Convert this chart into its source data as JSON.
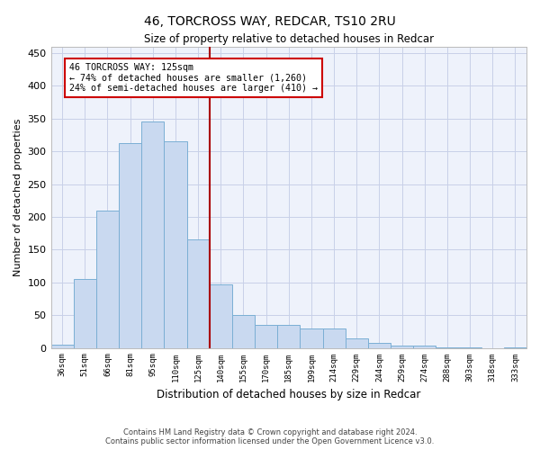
{
  "title": "46, TORCROSS WAY, REDCAR, TS10 2RU",
  "subtitle": "Size of property relative to detached houses in Redcar",
  "xlabel": "Distribution of detached houses by size in Redcar",
  "ylabel": "Number of detached properties",
  "categories": [
    "36sqm",
    "51sqm",
    "66sqm",
    "81sqm",
    "95sqm",
    "110sqm",
    "125sqm",
    "140sqm",
    "155sqm",
    "170sqm",
    "185sqm",
    "199sqm",
    "214sqm",
    "229sqm",
    "244sqm",
    "259sqm",
    "274sqm",
    "288sqm",
    "303sqm",
    "318sqm",
    "333sqm"
  ],
  "values": [
    5,
    105,
    210,
    313,
    345,
    316,
    165,
    97,
    50,
    35,
    35,
    29,
    29,
    15,
    7,
    4,
    4,
    1,
    1,
    0,
    1
  ],
  "highlight_index": 6,
  "vline_x": 6.5,
  "bar_color": "#c9d9f0",
  "bar_edge_color": "#7bafd4",
  "vline_color": "#aa0000",
  "annotation_line1": "46 TORCROSS WAY: 125sqm",
  "annotation_line2": "← 74% of detached houses are smaller (1,260)",
  "annotation_line3": "24% of semi-detached houses are larger (410) →",
  "annotation_box_color": "#ffffff",
  "annotation_box_edge": "#cc0000",
  "ylim": [
    0,
    460
  ],
  "yticks": [
    0,
    50,
    100,
    150,
    200,
    250,
    300,
    350,
    400,
    450
  ],
  "footer1": "Contains HM Land Registry data © Crown copyright and database right 2024.",
  "footer2": "Contains public sector information licensed under the Open Government Licence v3.0.",
  "bg_color": "#eef2fb",
  "grid_color": "#c8d0e8"
}
